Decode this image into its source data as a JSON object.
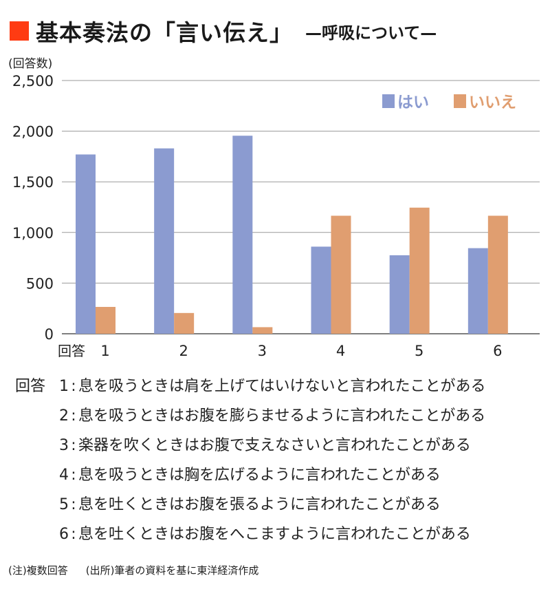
{
  "title": {
    "main": "基本奏法の「言い伝え」",
    "subtitle": "—呼吸について—",
    "accent_color": "#ff3b12"
  },
  "chart_data": {
    "type": "bar",
    "ylabel": "(回答数)",
    "xlabel_prefix": "回答",
    "categories": [
      "1",
      "2",
      "3",
      "4",
      "5",
      "6"
    ],
    "yticks": [
      "0",
      "500",
      "1,000",
      "1,500",
      "2,000",
      "2,500"
    ],
    "ylim": [
      0,
      2500
    ],
    "grid": true,
    "legend_position": "top-right",
    "series": [
      {
        "name": "はい",
        "color": "#8b9bd0",
        "values": [
          1770,
          1830,
          1955,
          860,
          775,
          845
        ]
      },
      {
        "name": "いいえ",
        "color": "#e09e70",
        "values": [
          265,
          205,
          65,
          1165,
          1245,
          1165
        ]
      }
    ]
  },
  "answers": {
    "prefix": "回答",
    "items": [
      {
        "num": "1",
        "text": "息を吸うときは肩を上げてはいけないと言われたことがある"
      },
      {
        "num": "2",
        "text": "息を吸うときはお腹を膨らませるように言われたことがある"
      },
      {
        "num": "3",
        "text": "楽器を吹くときはお腹で支えなさいと言われたことがある"
      },
      {
        "num": "4",
        "text": "息を吸うときは胸を広げるように言われたことがある"
      },
      {
        "num": "5",
        "text": "息を吐くときはお腹を張るように言われたことがある"
      },
      {
        "num": "6",
        "text": "息を吐くときはお腹をへこますように言われたことがある"
      }
    ]
  },
  "notes": {
    "note": "(注)複数回答",
    "source": "(出所)筆者の資料を基に東洋経済作成"
  }
}
